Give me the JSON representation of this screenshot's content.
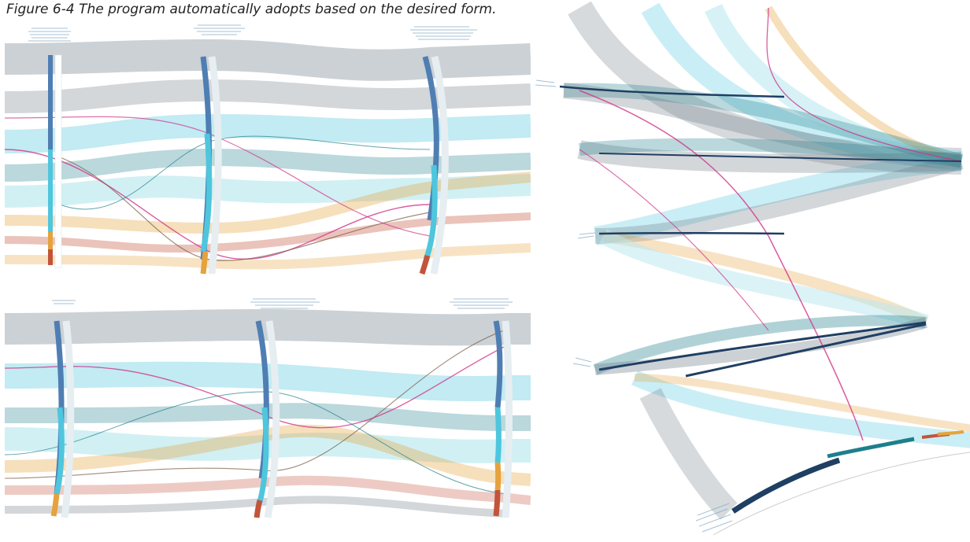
{
  "caption": "Figure 6-4 The program automatically adopts based on the desired form.",
  "colors": {
    "navy": "#1f3f63",
    "steel_blue": "#4f7eb3",
    "cyan": "#4fc6dd",
    "teal": "#1e7f8c",
    "slate": "#6c7a86",
    "orange": "#e6a23c",
    "red_brown": "#c2543c",
    "magenta": "#d0338a",
    "light_cyan": "#bde9f0"
  },
  "panels": [
    {
      "name": "top-left",
      "description_visible": false
    },
    {
      "name": "bottom-left",
      "description_visible": false
    },
    {
      "name": "right",
      "description_visible": false
    }
  ]
}
